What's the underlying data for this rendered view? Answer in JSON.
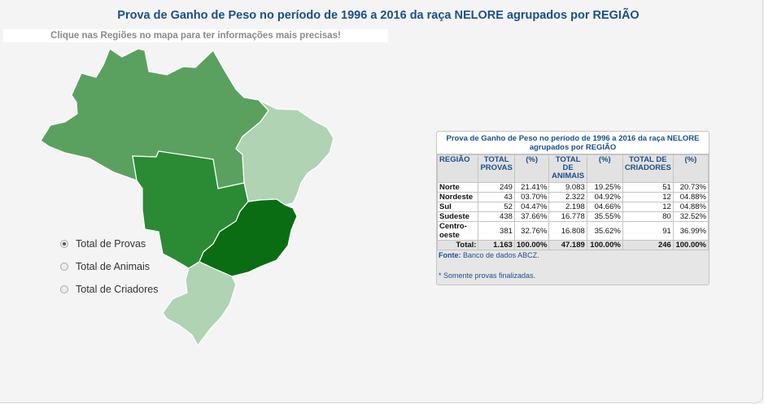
{
  "header": {
    "title": "Prova de Ganho de Peso no período de 1996 a 2016 da raça NELORE agrupados por REGIÃO",
    "hint": "Clique nas Regiões no mapa para ter informações mais precisas!"
  },
  "map": {
    "regions": [
      {
        "name": "Norte",
        "color": "#5aa15f"
      },
      {
        "name": "Nordeste",
        "color": "#b0d3b3"
      },
      {
        "name": "Centro-oeste",
        "color": "#2b8a34"
      },
      {
        "name": "Sudeste",
        "color": "#0a6d14"
      },
      {
        "name": "Sul",
        "color": "#b0d3b3"
      }
    ]
  },
  "options": {
    "selected": 0,
    "items": [
      "Total de Provas",
      "Total de Animais",
      "Total de Criadores"
    ]
  },
  "table": {
    "title": "Prova de Ganho de Peso no período de 1996 a 2016 da raça NELORE agrupados por REGIÃO",
    "headers": [
      "REGIÃO",
      "TOTAL PROVAS",
      "(%)",
      "TOTAL DE ANIMAIS",
      "(%)",
      "TOTAL DE CRIADORES",
      "(%)"
    ],
    "rows": [
      [
        "Norte",
        "249",
        "21.41%",
        "9.083",
        "19.25%",
        "51",
        "20.73%"
      ],
      [
        "Nordeste",
        "43",
        "03.70%",
        "2.322",
        "04.92%",
        "12",
        "04.88%"
      ],
      [
        "Sul",
        "52",
        "04.47%",
        "2.198",
        "04.66%",
        "12",
        "04.88%"
      ],
      [
        "Sudeste",
        "438",
        "37.66%",
        "16.778",
        "35.55%",
        "80",
        "32.52%"
      ],
      [
        "Centro-oeste",
        "381",
        "32.76%",
        "16.808",
        "35.62%",
        "91",
        "36.99%"
      ]
    ],
    "total": [
      "Total:",
      "1.163",
      "100.00%",
      "47.189",
      "100.00%",
      "246",
      "100.00%"
    ],
    "source_label": "Fonte:",
    "source_text": "Banco de dados ABCZ.",
    "footnote": "* Somente provas finalizadas."
  }
}
